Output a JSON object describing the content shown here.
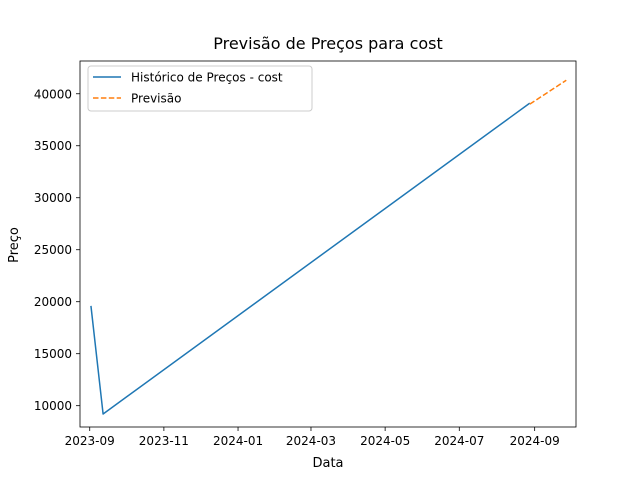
{
  "chart_data": {
    "type": "line",
    "title": "Previsão de Preços para cost",
    "xlabel": "Data",
    "ylabel": "Preço",
    "x_axis_type": "date",
    "xlim": [
      "2023-08-24",
      "2024-10-05"
    ],
    "ylim": [
      7950,
      43150
    ],
    "x_ticks": [
      "2023-09-01",
      "2023-11-01",
      "2024-01-01",
      "2024-03-01",
      "2024-05-01",
      "2024-07-01",
      "2024-09-01"
    ],
    "x_tick_labels": [
      "2023-09",
      "2023-11",
      "2024-01",
      "2024-03",
      "2024-05",
      "2024-07",
      "2024-09"
    ],
    "y_ticks": [
      10000,
      15000,
      20000,
      25000,
      30000,
      35000,
      40000
    ],
    "y_tick_labels": [
      "10000",
      "15000",
      "20000",
      "25000",
      "30000",
      "35000",
      "40000"
    ],
    "grid": false,
    "legend_position": "top-left",
    "series": [
      {
        "name": "Histórico de Preços - cost",
        "color": "#1f77b4",
        "style": "solid",
        "points": [
          {
            "x": "2023-09-02",
            "y": 19600
          },
          {
            "x": "2023-09-12",
            "y": 9200
          },
          {
            "x": "2024-08-28",
            "y": 39100
          }
        ]
      },
      {
        "name": "Previsão",
        "color": "#ff7f0e",
        "style": "dashed",
        "points": [
          {
            "x": "2024-08-28",
            "y": 39000
          },
          {
            "x": "2024-09-27",
            "y": 41300
          }
        ]
      }
    ]
  }
}
